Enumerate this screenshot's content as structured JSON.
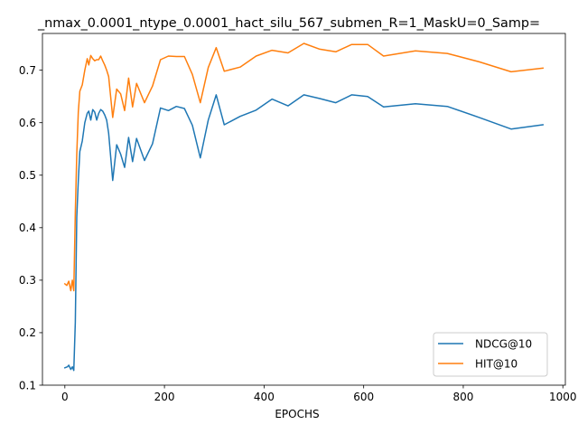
{
  "chart_data": {
    "type": "line",
    "title": "_nmax_0.0001_ntype_0.0001_hact_silu_567_submen_R=1_MaskU=0_Samp=",
    "xlabel": "EPOCHS",
    "ylabel": "",
    "xlim": [
      -45,
      1005
    ],
    "ylim": [
      0.1,
      0.77
    ],
    "xticks": [
      0,
      200,
      400,
      600,
      800,
      1000
    ],
    "yticks": [
      0.1,
      0.2,
      0.3,
      0.4,
      0.5,
      0.6,
      0.7
    ],
    "xtick_labels": [
      "0",
      "200",
      "400",
      "600",
      "800",
      "1000"
    ],
    "ytick_labels": [
      "0.1",
      "0.2",
      "0.3",
      "0.4",
      "0.5",
      "0.6",
      "0.7"
    ],
    "legend_position": "lower-right",
    "series": [
      {
        "name": "NDCG@10",
        "color": "#1f77b4",
        "points": [
          [
            0,
            0.133
          ],
          [
            5,
            0.135
          ],
          [
            8,
            0.138
          ],
          [
            12,
            0.13
          ],
          [
            15,
            0.135
          ],
          [
            18,
            0.128
          ],
          [
            21,
            0.22
          ],
          [
            24,
            0.42
          ],
          [
            27,
            0.49
          ],
          [
            30,
            0.545
          ],
          [
            35,
            0.565
          ],
          [
            40,
            0.6
          ],
          [
            45,
            0.618
          ],
          [
            48,
            0.622
          ],
          [
            52,
            0.605
          ],
          [
            56,
            0.625
          ],
          [
            60,
            0.62
          ],
          [
            64,
            0.605
          ],
          [
            68,
            0.618
          ],
          [
            72,
            0.625
          ],
          [
            76,
            0.622
          ],
          [
            80,
            0.615
          ],
          [
            84,
            0.605
          ],
          [
            88,
            0.58
          ],
          [
            96,
            0.49
          ],
          [
            104,
            0.558
          ],
          [
            112,
            0.54
          ],
          [
            120,
            0.515
          ],
          [
            128,
            0.572
          ],
          [
            136,
            0.526
          ],
          [
            144,
            0.57
          ],
          [
            160,
            0.528
          ],
          [
            176,
            0.56
          ],
          [
            192,
            0.628
          ],
          [
            208,
            0.623
          ],
          [
            224,
            0.631
          ],
          [
            240,
            0.627
          ],
          [
            256,
            0.595
          ],
          [
            272,
            0.533
          ],
          [
            288,
            0.605
          ],
          [
            304,
            0.653
          ],
          [
            320,
            0.596
          ],
          [
            352,
            0.612
          ],
          [
            384,
            0.624
          ],
          [
            416,
            0.645
          ],
          [
            448,
            0.632
          ],
          [
            480,
            0.653
          ],
          [
            512,
            0.646
          ],
          [
            544,
            0.638
          ],
          [
            576,
            0.653
          ],
          [
            608,
            0.65
          ],
          [
            640,
            0.63
          ],
          [
            704,
            0.636
          ],
          [
            768,
            0.631
          ],
          [
            832,
            0.61
          ],
          [
            896,
            0.588
          ],
          [
            960,
            0.596
          ]
        ]
      },
      {
        "name": "HIT@10",
        "color": "#ff7f0e",
        "points": [
          [
            0,
            0.293
          ],
          [
            4,
            0.29
          ],
          [
            8,
            0.298
          ],
          [
            12,
            0.28
          ],
          [
            15,
            0.3
          ],
          [
            18,
            0.28
          ],
          [
            21,
            0.43
          ],
          [
            24,
            0.54
          ],
          [
            27,
            0.62
          ],
          [
            30,
            0.66
          ],
          [
            35,
            0.672
          ],
          [
            40,
            0.7
          ],
          [
            45,
            0.722
          ],
          [
            48,
            0.71
          ],
          [
            52,
            0.728
          ],
          [
            56,
            0.722
          ],
          [
            60,
            0.718
          ],
          [
            64,
            0.72
          ],
          [
            68,
            0.72
          ],
          [
            72,
            0.727
          ],
          [
            76,
            0.718
          ],
          [
            80,
            0.71
          ],
          [
            84,
            0.7
          ],
          [
            88,
            0.688
          ],
          [
            96,
            0.61
          ],
          [
            104,
            0.664
          ],
          [
            112,
            0.655
          ],
          [
            120,
            0.623
          ],
          [
            128,
            0.685
          ],
          [
            136,
            0.63
          ],
          [
            144,
            0.675
          ],
          [
            160,
            0.638
          ],
          [
            176,
            0.67
          ],
          [
            192,
            0.72
          ],
          [
            208,
            0.727
          ],
          [
            224,
            0.726
          ],
          [
            240,
            0.726
          ],
          [
            256,
            0.692
          ],
          [
            272,
            0.638
          ],
          [
            288,
            0.705
          ],
          [
            304,
            0.743
          ],
          [
            320,
            0.698
          ],
          [
            352,
            0.706
          ],
          [
            384,
            0.727
          ],
          [
            416,
            0.738
          ],
          [
            448,
            0.733
          ],
          [
            480,
            0.751
          ],
          [
            512,
            0.74
          ],
          [
            544,
            0.735
          ],
          [
            576,
            0.749
          ],
          [
            608,
            0.749
          ],
          [
            640,
            0.727
          ],
          [
            704,
            0.737
          ],
          [
            768,
            0.732
          ],
          [
            832,
            0.716
          ],
          [
            896,
            0.697
          ],
          [
            960,
            0.704
          ]
        ]
      }
    ]
  }
}
